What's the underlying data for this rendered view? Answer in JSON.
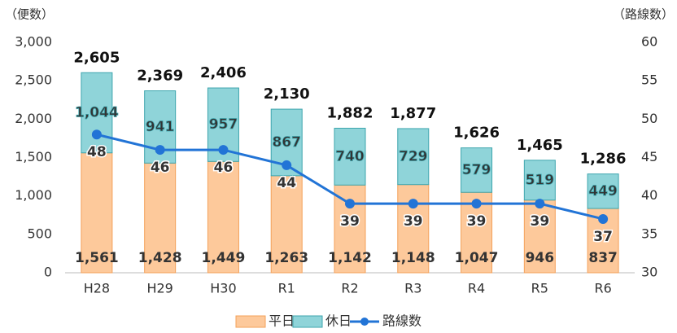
{
  "chart_data": {
    "type": "bar",
    "stacked": true,
    "y_axis_label": "（便数）",
    "y2_axis_label": "（路線数）",
    "categories": [
      "H28",
      "H29",
      "H30",
      "R1",
      "R2",
      "R3",
      "R4",
      "R5",
      "R6"
    ],
    "series": [
      {
        "name": "平日",
        "color": "#fdc99b",
        "edge": "#f4a15a",
        "label_color": "#f07a20",
        "values": [
          1561,
          1428,
          1449,
          1263,
          1142,
          1148,
          1047,
          946,
          837
        ],
        "value_labels": [
          "1,561",
          "1,428",
          "1,449",
          "1,263",
          "1,142",
          "1,148",
          "1,047",
          "946",
          "837"
        ]
      },
      {
        "name": "休日",
        "color": "#8fd4d9",
        "edge": "#3ea6ae",
        "label_color": "#3ea6ae",
        "values": [
          1044,
          941,
          957,
          867,
          740,
          729,
          579,
          519,
          449
        ],
        "value_labels": [
          "1,044",
          "941",
          "957",
          "867",
          "740",
          "729",
          "579",
          "519",
          "449"
        ]
      },
      {
        "name": "路線数",
        "type": "line",
        "axis": "y2",
        "color": "#2274d6",
        "values": [
          48,
          46,
          46,
          44,
          39,
          39,
          39,
          39,
          37
        ]
      }
    ],
    "total_labels": [
      "2,605",
      "2,369",
      "2,406",
      "2,130",
      "1,882",
      "1,877",
      "1,626",
      "1,465",
      "1,286"
    ],
    "ylim": [
      0,
      3000
    ],
    "yticks": [
      0,
      500,
      {
        "value": 1000,
        "label": "1,000"
      },
      {
        "value": 1500,
        "label": "1,500"
      },
      {
        "value": 2000,
        "label": "2,000"
      },
      {
        "value": 2500,
        "label": "2,500"
      },
      {
        "value": 3000,
        "label": "3,000"
      }
    ],
    "y2lim": [
      30,
      60
    ],
    "y2ticks": [
      30,
      35,
      40,
      45,
      50,
      55,
      60
    ],
    "legend": "bottom",
    "grid": false
  }
}
